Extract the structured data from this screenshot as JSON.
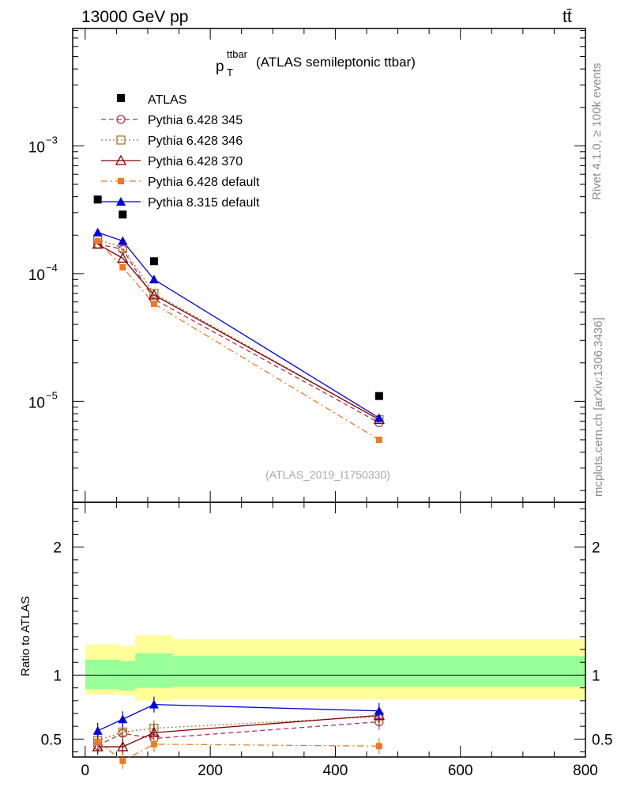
{
  "header": {
    "left_title": "13000 GeV pp",
    "right_title": "tt̄"
  },
  "side_labels": {
    "top": "Rivet 4.1.0, ≥ 100k events",
    "bottom": "mcplots.cern.ch [arXiv:1306.3436]"
  },
  "chart_data": {
    "type": "line",
    "title": "p_T^ttbar (ATLAS semileptonic ttbar)",
    "title_main": "p",
    "title_sub": "T",
    "title_sup": "ttbar",
    "title_rest": "(ATLAS semileptonic ttbar)",
    "analysis_id": "(ATLAS_2019_I1750330)",
    "x": [
      20,
      60,
      110,
      470
    ],
    "xlim": [
      -20,
      800
    ],
    "x_ticks": [
      0,
      200,
      400,
      600,
      800
    ],
    "x_tick_labels": [
      "0",
      "200",
      "400",
      "600",
      "800"
    ],
    "y_scale": "log",
    "ylim": [
      1.62e-06,
      0.0083
    ],
    "y_tick_labels": [
      {
        "value": 0.001,
        "base": "10",
        "exp": "−3"
      },
      {
        "value": 0.0001,
        "base": "10",
        "exp": "−4"
      },
      {
        "value": 1e-05,
        "base": "10",
        "exp": "−5"
      }
    ],
    "legend_position": "top-left",
    "reference": {
      "name": "ATLAS",
      "values": [
        0.00038,
        0.00029,
        0.000125,
        1.1e-05
      ]
    },
    "series": [
      {
        "name": "Pythia 6.428 345",
        "color": "#b03050",
        "dash": "6,4",
        "marker": "open-circle",
        "values": [
          0.00017,
          0.000155,
          6.3e-05,
          6.8e-06
        ]
      },
      {
        "name": "Pythia 6.428 346",
        "color": "#a07830",
        "dash": "2,3",
        "marker": "open-square",
        "values": [
          0.000185,
          0.00016,
          7e-05,
          7.2e-06
        ]
      },
      {
        "name": "Pythia 6.428 370",
        "color": "#800000",
        "dash": "",
        "marker": "open-triangle",
        "values": [
          0.00017,
          0.000132,
          6.8e-05,
          7.2e-06
        ]
      },
      {
        "name": "Pythia 6.428 default",
        "color": "#f07820",
        "dash": "8,4,2,4",
        "marker": "filled-square",
        "values": [
          0.00018,
          0.000112,
          5.8e-05,
          5e-06
        ]
      },
      {
        "name": "Pythia 8.315 default",
        "color": "#0000dd",
        "dash": "",
        "marker": "filled-triangle",
        "values": [
          0.00021,
          0.00018,
          9e-05,
          7.4e-06
        ]
      }
    ],
    "ratio": {
      "ylabel": "Ratio to ATLAS",
      "ylim": [
        0.36,
        2.35
      ],
      "y_tick_labels": [
        "0.5",
        "1",
        "2"
      ],
      "y_ticks": [
        0.5,
        1,
        2
      ],
      "bands": [
        {
          "x0": 0,
          "x1": 55,
          "stat": [
            0.89,
            1.12
          ],
          "tot": [
            0.85,
            1.24
          ]
        },
        {
          "x0": 55,
          "x1": 80,
          "stat": [
            0.88,
            1.11
          ],
          "tot": [
            0.84,
            1.23
          ]
        },
        {
          "x0": 80,
          "x1": 140,
          "stat": [
            0.9,
            1.17
          ],
          "tot": [
            0.8,
            1.31
          ]
        },
        {
          "x0": 140,
          "x1": 800,
          "stat": [
            0.91,
            1.15
          ],
          "tot": [
            0.81,
            1.28
          ]
        }
      ],
      "series": [
        {
          "name": "Pythia 6.428 345",
          "values": [
            0.45,
            0.545,
            0.505,
            0.635
          ]
        },
        {
          "name": "Pythia 6.428 346",
          "values": [
            0.49,
            0.555,
            0.585,
            0.675
          ]
        },
        {
          "name": "Pythia 6.428 370",
          "values": [
            0.44,
            0.44,
            0.55,
            0.685
          ]
        },
        {
          "name": "Pythia 6.428 default",
          "values": [
            0.48,
            0.33,
            0.46,
            0.445
          ]
        },
        {
          "name": "Pythia 8.315 default",
          "values": [
            0.565,
            0.655,
            0.77,
            0.72
          ]
        }
      ]
    }
  }
}
